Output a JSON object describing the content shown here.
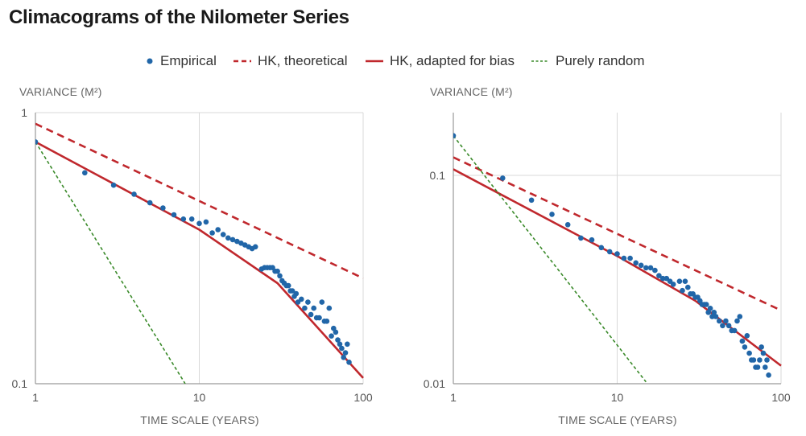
{
  "title": "Climacograms of the Nilometer Series",
  "legend": [
    {
      "label": "Empirical",
      "marker": "dot",
      "color": "#2166a8"
    },
    {
      "label": "HK, theoretical",
      "marker": "dashed",
      "color": "#c0282d"
    },
    {
      "label": "HK, adapted for bias",
      "marker": "solid",
      "color": "#c0282d"
    },
    {
      "label": "Purely random",
      "marker": "dotted",
      "color": "#3a8a2a"
    }
  ],
  "colors": {
    "empirical": "#2166a8",
    "hk": "#c0282d",
    "random": "#3a8a2a",
    "grid": "#d9d9d9",
    "axis": "#9a9a9a"
  },
  "chart_data": [
    {
      "type": "scatter",
      "title": "",
      "xlabel": "TIME SCALE (YEARS)",
      "ylabel": "VARIANCE (M²)",
      "xscale": "log",
      "yscale": "log",
      "xlim": [
        1,
        100
      ],
      "ylim": [
        0.1,
        1
      ],
      "xticks": [
        {
          "v": 1,
          "label": "1"
        },
        {
          "v": 10,
          "label": "10"
        },
        {
          "v": 100,
          "label": "100"
        }
      ],
      "yticks": [
        {
          "v": 0.1,
          "label": "0.1"
        },
        {
          "v": 1,
          "label": "1"
        }
      ],
      "grid": true,
      "series": [
        {
          "name": "Empirical",
          "kind": "points",
          "x": [
            1,
            2,
            3,
            4,
            5,
            6,
            7,
            8,
            9,
            10,
            11,
            12,
            13,
            14,
            15,
            16,
            17,
            18,
            19,
            20,
            21,
            22,
            24,
            25,
            26,
            27,
            28,
            29,
            30,
            31,
            32,
            33,
            34,
            35,
            36,
            37,
            38,
            39,
            40,
            42,
            44,
            46,
            48,
            50,
            52,
            54,
            56,
            58,
            60,
            62,
            64,
            66,
            68,
            70,
            72,
            74,
            76,
            78,
            80,
            82
          ],
          "y": [
            0.78,
            0.6,
            0.54,
            0.5,
            0.465,
            0.445,
            0.42,
            0.405,
            0.405,
            0.39,
            0.395,
            0.36,
            0.37,
            0.355,
            0.345,
            0.34,
            0.335,
            0.33,
            0.325,
            0.32,
            0.315,
            0.32,
            0.265,
            0.268,
            0.268,
            0.268,
            0.268,
            0.26,
            0.26,
            0.25,
            0.24,
            0.235,
            0.23,
            0.23,
            0.22,
            0.22,
            0.21,
            0.215,
            0.2,
            0.205,
            0.19,
            0.2,
            0.18,
            0.19,
            0.175,
            0.175,
            0.2,
            0.17,
            0.17,
            0.19,
            0.15,
            0.16,
            0.155,
            0.145,
            0.14,
            0.135,
            0.125,
            0.13,
            0.14,
            0.12
          ]
        },
        {
          "name": "HK, theoretical",
          "kind": "line",
          "style": "dashed",
          "x": [
            1,
            100
          ],
          "y": [
            0.91,
            0.245
          ]
        },
        {
          "name": "HK, adapted for bias",
          "kind": "line",
          "style": "solid",
          "x": [
            1,
            10,
            30,
            100
          ],
          "y": [
            0.78,
            0.37,
            0.235,
            0.105
          ]
        },
        {
          "name": "Purely random",
          "kind": "line",
          "style": "dotted",
          "x": [
            1,
            8.2
          ],
          "y": [
            0.78,
            0.1
          ]
        }
      ]
    },
    {
      "type": "scatter",
      "title": "",
      "xlabel": "TIME SCALE (YEARS)",
      "ylabel": "VARIANCE (M²)",
      "xscale": "log",
      "yscale": "log",
      "xlim": [
        1,
        100
      ],
      "ylim": [
        0.01,
        0.2
      ],
      "xticks": [
        {
          "v": 1,
          "label": "1"
        },
        {
          "v": 10,
          "label": "10"
        },
        {
          "v": 100,
          "label": "100"
        }
      ],
      "yticks": [
        {
          "v": 0.01,
          "label": "0.01"
        },
        {
          "v": 0.1,
          "label": "0.1"
        }
      ],
      "grid": true,
      "series": [
        {
          "name": "Empirical",
          "kind": "points",
          "x": [
            1,
            2,
            3,
            4,
            5,
            6,
            7,
            8,
            9,
            10,
            11,
            12,
            13,
            14,
            15,
            16,
            17,
            18,
            19,
            20,
            21,
            22,
            24,
            25,
            26,
            27,
            28,
            29,
            30,
            31,
            32,
            33,
            34,
            35,
            36,
            37,
            38,
            39,
            40,
            42,
            44,
            46,
            48,
            50,
            52,
            54,
            56,
            58,
            60,
            62,
            64,
            66,
            68,
            70,
            72,
            74,
            76,
            78,
            80,
            82,
            84
          ],
          "y": [
            0.155,
            0.097,
            0.076,
            0.065,
            0.058,
            0.05,
            0.049,
            0.045,
            0.043,
            0.042,
            0.04,
            0.04,
            0.038,
            0.037,
            0.036,
            0.036,
            0.035,
            0.033,
            0.032,
            0.032,
            0.031,
            0.03,
            0.031,
            0.028,
            0.031,
            0.029,
            0.027,
            0.027,
            0.026,
            0.026,
            0.025,
            0.024,
            0.024,
            0.024,
            0.022,
            0.023,
            0.021,
            0.022,
            0.021,
            0.02,
            0.019,
            0.02,
            0.019,
            0.018,
            0.018,
            0.02,
            0.021,
            0.016,
            0.015,
            0.017,
            0.014,
            0.013,
            0.013,
            0.012,
            0.012,
            0.013,
            0.015,
            0.014,
            0.012,
            0.013,
            0.011
          ]
        },
        {
          "name": "HK, theoretical",
          "kind": "line",
          "style": "dashed",
          "x": [
            1,
            100
          ],
          "y": [
            0.122,
            0.0225
          ]
        },
        {
          "name": "HK, adapted for bias",
          "kind": "line",
          "style": "solid",
          "x": [
            1,
            10,
            30,
            100
          ],
          "y": [
            0.107,
            0.041,
            0.025,
            0.0122
          ]
        },
        {
          "name": "Purely random",
          "kind": "line",
          "style": "dotted",
          "x": [
            1,
            15
          ],
          "y": [
            0.155,
            0.0102
          ]
        }
      ]
    }
  ]
}
